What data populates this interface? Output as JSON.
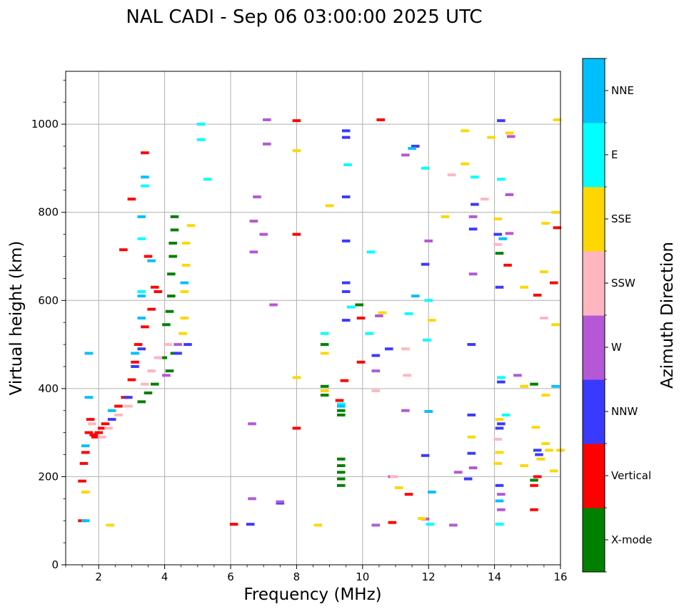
{
  "chart_data": {
    "type": "scatter",
    "title": "NAL CADI - Sep 06 03:00:00 2025 UTC",
    "xlabel": "Frequency (MHz)",
    "ylabel": "Virtual height (km)",
    "xlim": [
      1,
      16
    ],
    "ylim": [
      0,
      1120
    ],
    "xticks": [
      2,
      4,
      6,
      8,
      10,
      12,
      14,
      16
    ],
    "yticks": [
      0,
      200,
      400,
      600,
      800,
      1000
    ],
    "grid": true,
    "colorbar": {
      "label": "Azimuth Direction",
      "categories": [
        {
          "name": "X-mode",
          "color": "#008000"
        },
        {
          "name": "Vertical",
          "color": "#ff0000"
        },
        {
          "name": "NNW",
          "color": "#3a3aff"
        },
        {
          "name": "W",
          "color": "#b557d6"
        },
        {
          "name": "SSW",
          "color": "#ffb6c1"
        },
        {
          "name": "SSE",
          "color": "#ffd700"
        },
        {
          "name": "E",
          "color": "#00ffff"
        },
        {
          "name": "NNE",
          "color": "#00bfff"
        }
      ]
    },
    "segment_width_mhz": 0.25,
    "series": [
      {
        "name": "X-mode",
        "points": [
          [
            9.35,
            180
          ],
          [
            9.35,
            195
          ],
          [
            9.35,
            210
          ],
          [
            9.35,
            225
          ],
          [
            9.35,
            240
          ],
          [
            9.35,
            340
          ],
          [
            9.35,
            350
          ],
          [
            8.85,
            385
          ],
          [
            8.85,
            405
          ],
          [
            8.85,
            500
          ],
          [
            9.9,
            590
          ],
          [
            4.05,
            545
          ],
          [
            4.15,
            575
          ],
          [
            4.2,
            610
          ],
          [
            4.2,
            660
          ],
          [
            4.25,
            700
          ],
          [
            4.25,
            730
          ],
          [
            4.3,
            760
          ],
          [
            4.3,
            790
          ],
          [
            3.95,
            470
          ],
          [
            3.7,
            410
          ],
          [
            3.5,
            390
          ],
          [
            3.3,
            370
          ],
          [
            4.15,
            440
          ],
          [
            4.3,
            480
          ],
          [
            15.2,
            192
          ],
          [
            15.2,
            410
          ],
          [
            14.15,
            707
          ]
        ]
      },
      {
        "name": "Vertical",
        "points": [
          [
            1.5,
            100
          ],
          [
            1.5,
            190
          ],
          [
            1.55,
            230
          ],
          [
            1.6,
            255
          ],
          [
            1.7,
            300
          ],
          [
            1.75,
            330
          ],
          [
            1.85,
            295
          ],
          [
            1.9,
            290
          ],
          [
            2.0,
            300
          ],
          [
            2.1,
            310
          ],
          [
            2.2,
            320
          ],
          [
            2.6,
            360
          ],
          [
            2.8,
            380
          ],
          [
            3.0,
            420
          ],
          [
            3.1,
            460
          ],
          [
            3.2,
            500
          ],
          [
            3.4,
            540
          ],
          [
            3.6,
            580
          ],
          [
            3.8,
            620
          ],
          [
            3.7,
            630
          ],
          [
            3.5,
            700
          ],
          [
            2.75,
            715
          ],
          [
            3.0,
            830
          ],
          [
            3.4,
            935
          ],
          [
            6.1,
            92
          ],
          [
            8.0,
            310
          ],
          [
            8.0,
            750
          ],
          [
            8.0,
            1008
          ],
          [
            9.3,
            373
          ],
          [
            9.45,
            418
          ],
          [
            9.95,
            460
          ],
          [
            9.95,
            560
          ],
          [
            10.55,
            1010
          ],
          [
            10.9,
            96
          ],
          [
            11.4,
            160
          ],
          [
            14.4,
            680
          ],
          [
            15.2,
            125
          ],
          [
            15.2,
            180
          ],
          [
            15.3,
            200
          ],
          [
            15.3,
            612
          ],
          [
            15.8,
            640
          ],
          [
            15.9,
            765
          ]
        ]
      },
      {
        "name": "NNW",
        "points": [
          [
            2.4,
            330
          ],
          [
            2.9,
            380
          ],
          [
            3.1,
            450
          ],
          [
            3.3,
            490
          ],
          [
            4.4,
            480
          ],
          [
            4.7,
            500
          ],
          [
            6.6,
            92
          ],
          [
            7.5,
            140
          ],
          [
            9.5,
            555
          ],
          [
            9.5,
            620
          ],
          [
            9.5,
            640
          ],
          [
            9.5,
            735
          ],
          [
            9.5,
            835
          ],
          [
            9.5,
            970
          ],
          [
            9.5,
            985
          ],
          [
            10.4,
            475
          ],
          [
            10.8,
            490
          ],
          [
            11.6,
            950
          ],
          [
            11.9,
            248
          ],
          [
            11.9,
            682
          ],
          [
            13.2,
            195
          ],
          [
            13.3,
            253
          ],
          [
            13.3,
            340
          ],
          [
            13.3,
            500
          ],
          [
            13.35,
            762
          ],
          [
            13.4,
            818
          ],
          [
            14.15,
            180
          ],
          [
            14.15,
            310
          ],
          [
            14.2,
            320
          ],
          [
            14.2,
            415
          ],
          [
            14.15,
            630
          ],
          [
            14.1,
            750
          ],
          [
            14.2,
            1008
          ],
          [
            15.3,
            260
          ],
          [
            15.35,
            250
          ]
        ]
      },
      {
        "name": "W",
        "points": [
          [
            4.05,
            430
          ],
          [
            4.4,
            500
          ],
          [
            6.65,
            150
          ],
          [
            6.65,
            320
          ],
          [
            6.7,
            710
          ],
          [
            6.7,
            780
          ],
          [
            6.8,
            835
          ],
          [
            7.0,
            750
          ],
          [
            7.1,
            955
          ],
          [
            7.1,
            1010
          ],
          [
            7.5,
            143
          ],
          [
            7.3,
            590
          ],
          [
            10.4,
            90
          ],
          [
            10.4,
            440
          ],
          [
            10.5,
            565
          ],
          [
            10.9,
            200
          ],
          [
            11.3,
            350
          ],
          [
            11.3,
            930
          ],
          [
            11.9,
            104
          ],
          [
            12.0,
            735
          ],
          [
            12.75,
            90
          ],
          [
            12.9,
            210
          ],
          [
            13.35,
            220
          ],
          [
            13.35,
            660
          ],
          [
            13.35,
            790
          ],
          [
            14.2,
            125
          ],
          [
            14.2,
            160
          ],
          [
            14.45,
            752
          ],
          [
            14.45,
            840
          ],
          [
            14.5,
            972
          ],
          [
            14.7,
            430
          ]
        ]
      },
      {
        "name": "SSW",
        "points": [
          [
            1.8,
            320
          ],
          [
            2.1,
            290
          ],
          [
            2.3,
            310
          ],
          [
            2.6,
            340
          ],
          [
            2.9,
            360
          ],
          [
            3.4,
            410
          ],
          [
            3.6,
            440
          ],
          [
            3.8,
            470
          ],
          [
            4.1,
            500
          ],
          [
            10.4,
            395
          ],
          [
            10.95,
            200
          ],
          [
            11.3,
            490
          ],
          [
            11.35,
            430
          ],
          [
            12.7,
            885
          ],
          [
            13.7,
            830
          ],
          [
            14.1,
            285
          ],
          [
            14.1,
            727
          ],
          [
            15.5,
            560
          ]
        ]
      },
      {
        "name": "SSE",
        "points": [
          [
            1.6,
            165
          ],
          [
            2.35,
            90
          ],
          [
            4.55,
            525
          ],
          [
            4.6,
            560
          ],
          [
            4.6,
            620
          ],
          [
            4.65,
            680
          ],
          [
            4.65,
            730
          ],
          [
            4.8,
            770
          ],
          [
            8.0,
            425
          ],
          [
            8.0,
            940
          ],
          [
            8.65,
            90
          ],
          [
            8.85,
            480
          ],
          [
            8.85,
            395
          ],
          [
            9.0,
            815
          ],
          [
            10.6,
            572
          ],
          [
            11.1,
            175
          ],
          [
            11.8,
            105
          ],
          [
            12.1,
            555
          ],
          [
            12.5,
            790
          ],
          [
            13.1,
            985
          ],
          [
            13.1,
            910
          ],
          [
            13.3,
            290
          ],
          [
            13.9,
            970
          ],
          [
            14.1,
            230
          ],
          [
            14.15,
            255
          ],
          [
            14.15,
            330
          ],
          [
            14.1,
            785
          ],
          [
            14.45,
            980
          ],
          [
            14.9,
            225
          ],
          [
            14.9,
            405
          ],
          [
            14.9,
            630
          ],
          [
            15.25,
            312
          ],
          [
            15.4,
            240
          ],
          [
            15.5,
            665
          ],
          [
            15.55,
            385
          ],
          [
            15.55,
            775
          ],
          [
            15.55,
            275
          ],
          [
            15.65,
            260
          ],
          [
            15.85,
            545
          ],
          [
            15.8,
            213
          ],
          [
            15.85,
            800
          ],
          [
            15.9,
            1010
          ],
          [
            16.0,
            260
          ]
        ]
      },
      {
        "name": "E",
        "points": [
          [
            3.3,
            620
          ],
          [
            3.3,
            740
          ],
          [
            3.4,
            860
          ],
          [
            5.1,
            1000
          ],
          [
            5.1,
            965
          ],
          [
            5.3,
            875
          ],
          [
            8.85,
            525
          ],
          [
            9.35,
            365
          ],
          [
            9.55,
            908
          ],
          [
            9.65,
            585
          ],
          [
            10.2,
            525
          ],
          [
            10.25,
            710
          ],
          [
            11.4,
            570
          ],
          [
            11.9,
            900
          ],
          [
            11.95,
            510
          ],
          [
            12.0,
            600
          ],
          [
            12.05,
            92
          ],
          [
            13.4,
            880
          ],
          [
            14.15,
            92
          ],
          [
            14.2,
            425
          ],
          [
            14.2,
            875
          ],
          [
            14.35,
            340
          ]
        ]
      },
      {
        "name": "NNE",
        "points": [
          [
            1.6,
            100
          ],
          [
            1.6,
            270
          ],
          [
            1.7,
            380
          ],
          [
            1.7,
            480
          ],
          [
            2.4,
            350
          ],
          [
            3.1,
            480
          ],
          [
            3.3,
            560
          ],
          [
            3.3,
            610
          ],
          [
            3.3,
            790
          ],
          [
            3.4,
            880
          ],
          [
            3.6,
            690
          ],
          [
            4.6,
            640
          ],
          [
            9.35,
            360
          ],
          [
            11.5,
            945
          ],
          [
            11.6,
            610
          ],
          [
            12.0,
            348
          ],
          [
            12.1,
            165
          ],
          [
            14.15,
            145
          ],
          [
            14.25,
            740
          ],
          [
            15.85,
            405
          ]
        ]
      }
    ]
  }
}
